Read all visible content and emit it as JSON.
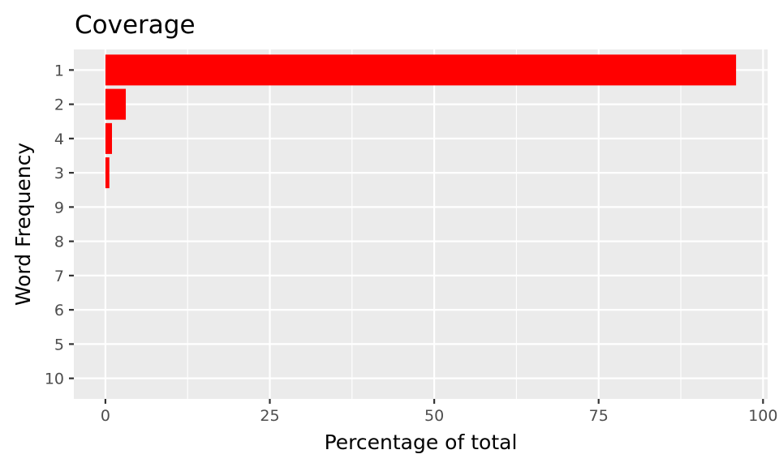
{
  "chart_data": {
    "type": "bar",
    "orientation": "horizontal",
    "title": "Coverage",
    "xlabel": "Percentage of total",
    "ylabel": "Word Frequency",
    "categories": [
      "1",
      "2",
      "4",
      "3",
      "9",
      "8",
      "7",
      "6",
      "5",
      "10"
    ],
    "values": [
      95.9,
      3.1,
      1.0,
      0.6,
      0.0,
      0.0,
      0.0,
      0.0,
      0.0,
      0.0
    ],
    "xlim": [
      -4.8,
      100.7
    ],
    "xticks": [
      0,
      25,
      50,
      75,
      100
    ],
    "grid": true,
    "legend": "none",
    "colors": {
      "bar": "#ff0000",
      "panel": "#ebebeb",
      "grid": "#ffffff",
      "tick": "#333333"
    }
  }
}
